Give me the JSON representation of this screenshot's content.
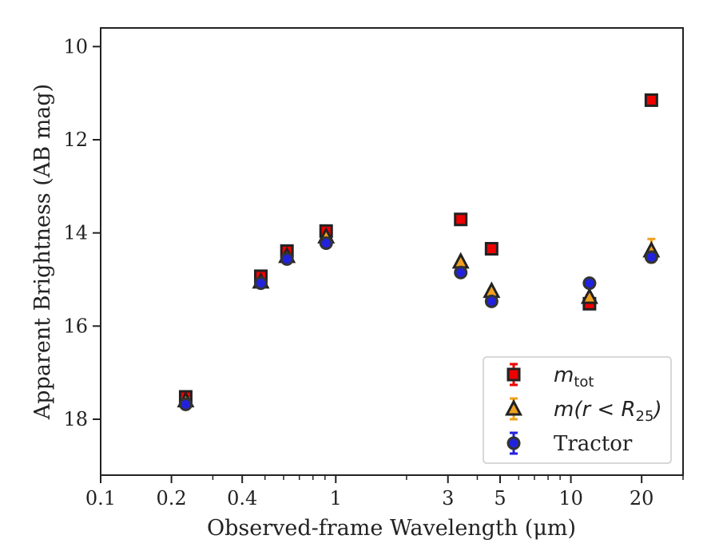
{
  "chart_data": {
    "type": "scatter",
    "xlabel": "Observed-frame Wavelength (μm)",
    "ylabel": "Apparent Brightness (AB mag)",
    "xscale": "log",
    "xlim": [
      0.1,
      30
    ],
    "ylim": [
      19.2,
      9.6
    ],
    "y_inverted": true,
    "xticks": [
      {
        "value": 0.1,
        "label": "0.1"
      },
      {
        "value": 0.2,
        "label": "0.2"
      },
      {
        "value": 0.4,
        "label": "0.4"
      },
      {
        "value": 1,
        "label": "1"
      },
      {
        "value": 3,
        "label": "3"
      },
      {
        "value": 5,
        "label": "5"
      },
      {
        "value": 10,
        "label": "10"
      },
      {
        "value": 20,
        "label": "20"
      }
    ],
    "yticks": [
      {
        "value": 10,
        "label": "10"
      },
      {
        "value": 12,
        "label": "12"
      },
      {
        "value": 14,
        "label": "14"
      },
      {
        "value": 16,
        "label": "16"
      },
      {
        "value": 18,
        "label": "18"
      }
    ],
    "legend_position": "lower-right",
    "series": [
      {
        "name": "m_tot",
        "legend_main": "m",
        "legend_sub": "tot",
        "marker": "square",
        "color": "#ee0000",
        "edge": "#222222",
        "points": [
          {
            "x": 0.23,
            "y": 17.52,
            "err": 0.05
          },
          {
            "x": 0.48,
            "y": 14.93,
            "err": 0.03
          },
          {
            "x": 0.62,
            "y": 14.39,
            "err": 0.03
          },
          {
            "x": 0.91,
            "y": 13.96,
            "err": 0.03
          },
          {
            "x": 3.4,
            "y": 13.71,
            "err": 0.02
          },
          {
            "x": 4.6,
            "y": 14.34,
            "err": 0.02
          },
          {
            "x": 12.0,
            "y": 15.52,
            "err": 0.04
          },
          {
            "x": 22.0,
            "y": 11.15,
            "err": 0.03
          }
        ]
      },
      {
        "name": "m(r<R25)",
        "legend_main": "m(r < R",
        "legend_sub": "25",
        "legend_tail": ")",
        "marker": "triangle",
        "color": "#f0a020",
        "edge": "#222222",
        "points": [
          {
            "x": 0.23,
            "y": 17.6,
            "err": 0.05
          },
          {
            "x": 0.48,
            "y": 15.05,
            "err": 0.03
          },
          {
            "x": 0.62,
            "y": 14.5,
            "err": 0.03
          },
          {
            "x": 0.91,
            "y": 14.08,
            "err": 0.03
          },
          {
            "x": 3.4,
            "y": 14.62,
            "err": 0.03
          },
          {
            "x": 4.6,
            "y": 15.25,
            "err": 0.04
          },
          {
            "x": 12.0,
            "y": 15.38,
            "err": 0.05
          },
          {
            "x": 22.0,
            "y": 14.38,
            "err": 0.25
          }
        ]
      },
      {
        "name": "Tractor",
        "legend_main": "Tractor",
        "marker": "circle",
        "color": "#2222dd",
        "edge": "#333333",
        "points": [
          {
            "x": 0.23,
            "y": 17.68,
            "err": 0.05
          },
          {
            "x": 0.48,
            "y": 15.08,
            "err": 0.03
          },
          {
            "x": 0.62,
            "y": 14.56,
            "err": 0.03
          },
          {
            "x": 0.91,
            "y": 14.22,
            "err": 0.03
          },
          {
            "x": 3.4,
            "y": 14.85,
            "err": 0.03
          },
          {
            "x": 4.6,
            "y": 15.47,
            "err": 0.04
          },
          {
            "x": 12.0,
            "y": 15.08,
            "err": 0.05
          },
          {
            "x": 22.0,
            "y": 14.52,
            "err": 0.08
          }
        ]
      }
    ]
  }
}
